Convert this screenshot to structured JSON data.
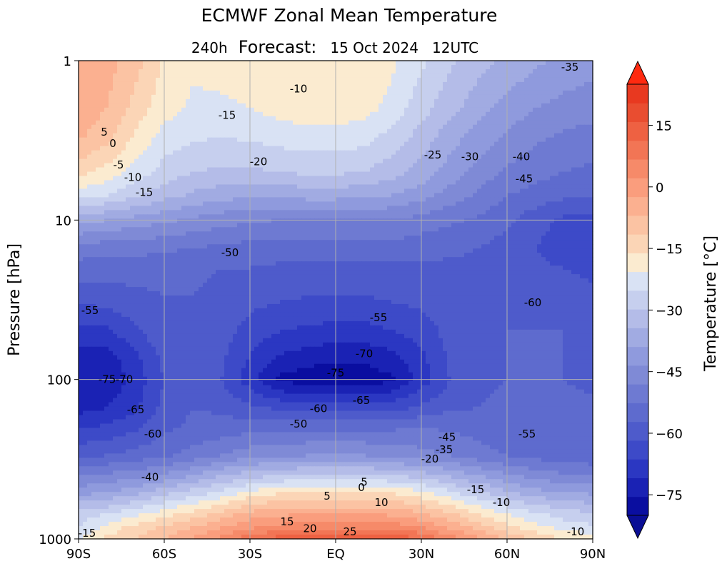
{
  "chart_data": {
    "type": "heatmap",
    "title": "ECMWF Zonal Mean Temperature",
    "subtitle": {
      "lead": "240h",
      "label": "Forecast:",
      "date": "15 Oct 2024",
      "time": "12UTC"
    },
    "xlabel": "",
    "ylabel": "Pressure [hPa]",
    "x_scale": "linear",
    "y_scale": "log",
    "y_inverted": true,
    "xlim": [
      -90,
      90
    ],
    "ylim": [
      1000,
      1
    ],
    "x_ticks": [
      {
        "value": -90,
        "label": "90S"
      },
      {
        "value": -60,
        "label": "60S"
      },
      {
        "value": -30,
        "label": "30S"
      },
      {
        "value": 0,
        "label": "EQ"
      },
      {
        "value": 30,
        "label": "30N"
      },
      {
        "value": 60,
        "label": "60N"
      },
      {
        "value": 90,
        "label": "90N"
      }
    ],
    "y_ticks": [
      {
        "value": 1,
        "label": "1"
      },
      {
        "value": 10,
        "label": "10"
      },
      {
        "value": 100,
        "label": "100"
      },
      {
        "value": 1000,
        "label": "1000"
      }
    ],
    "grid": true,
    "contour_interval": 5,
    "colorbar": {
      "label": "Temperature [°C]",
      "min": -80,
      "max": 25,
      "step": 5,
      "extend": "both",
      "ticks": [
        {
          "value": 15,
          "label": "15"
        },
        {
          "value": 0,
          "label": "0"
        },
        {
          "value": -15,
          "label": "−15"
        },
        {
          "value": -30,
          "label": "−30"
        },
        {
          "value": -45,
          "label": "−45"
        },
        {
          "value": -60,
          "label": "−60"
        },
        {
          "value": -75,
          "label": "−75"
        }
      ],
      "colors": [
        "#0a0ea0",
        "#1a22b4",
        "#2b37c2",
        "#3d4ac8",
        "#4e5bcb",
        "#5e6bce",
        "#6e7ad2",
        "#7f8ad6",
        "#8f9add",
        "#a1abe2",
        "#b4bce8",
        "#c6cfee",
        "#d9e2f4",
        "#fbebd0",
        "#fbd5b6",
        "#fbc3a3",
        "#fbb090",
        "#fa9d7d",
        "#f68a69",
        "#f27555",
        "#ee6142",
        "#e94d30",
        "#e83920"
      ],
      "over_color": "#ff2a10",
      "under_color": "#0a0e95"
    },
    "grid_data": {
      "lat": [
        -90,
        -80,
        -70,
        -60,
        -50,
        -40,
        -30,
        -20,
        -10,
        0,
        10,
        20,
        30,
        40,
        50,
        60,
        70,
        80,
        90
      ],
      "pressure_hPa": [
        1,
        2,
        3,
        5,
        7,
        10,
        15,
        20,
        30,
        50,
        70,
        100,
        150,
        200,
        300,
        400,
        500,
        700,
        850,
        1000
      ],
      "temperature_C": [
        [
          2,
          2,
          -3,
          -11,
          -14,
          -13,
          -12,
          -11,
          -10,
          -10,
          -10,
          -14,
          -19,
          -24,
          -28,
          -31,
          -34,
          -36,
          -38
        ],
        [
          3,
          0,
          -7,
          -13,
          -16,
          -16,
          -15,
          -13,
          -12,
          -12,
          -13,
          -17,
          -23,
          -28,
          -33,
          -37,
          -40,
          -42,
          -43
        ],
        [
          1,
          -3,
          -11,
          -17,
          -19,
          -20,
          -19,
          -18,
          -17,
          -17,
          -18,
          -22,
          -27,
          -33,
          -37,
          -41,
          -44,
          -46,
          -47
        ],
        [
          -8,
          -12,
          -17,
          -22,
          -25,
          -26,
          -26,
          -25,
          -24,
          -24,
          -25,
          -28,
          -32,
          -37,
          -42,
          -46,
          -48,
          -50,
          -51
        ],
        [
          -18,
          -20,
          -24,
          -28,
          -31,
          -33,
          -34,
          -34,
          -33,
          -33,
          -34,
          -35,
          -38,
          -42,
          -46,
          -50,
          -52,
          -54,
          -55
        ],
        [
          -33,
          -35,
          -37,
          -39,
          -41,
          -43,
          -44,
          -45,
          -45,
          -45,
          -45,
          -45,
          -47,
          -49,
          -51,
          -54,
          -58,
          -61,
          -62
        ],
        [
          -47,
          -48,
          -48,
          -49,
          -50,
          -51,
          -52,
          -52,
          -52,
          -52,
          -52,
          -52,
          -53,
          -54,
          -55,
          -57,
          -60,
          -63,
          -64
        ],
        [
          -52,
          -53,
          -53,
          -53,
          -54,
          -55,
          -55,
          -56,
          -56,
          -56,
          -56,
          -56,
          -56,
          -56,
          -56,
          -57,
          -59,
          -60,
          -62
        ],
        [
          -58,
          -57,
          -56,
          -55,
          -55,
          -56,
          -58,
          -59,
          -60,
          -60,
          -60,
          -59,
          -58,
          -57,
          -56,
          -56,
          -57,
          -57,
          -58
        ],
        [
          -67,
          -66,
          -61,
          -56,
          -56,
          -58,
          -62,
          -65,
          -66,
          -67,
          -67,
          -65,
          -63,
          -58,
          -56,
          -55,
          -55,
          -55,
          -56
        ],
        [
          -72,
          -72,
          -66,
          -58,
          -57,
          -59,
          -65,
          -70,
          -72,
          -73,
          -73,
          -71,
          -66,
          -59,
          -56,
          -55,
          -55,
          -55,
          -56
        ],
        [
          -75,
          -74,
          -68,
          -60,
          -57,
          -60,
          -68,
          -76,
          -78,
          -79,
          -78,
          -76,
          -68,
          -60,
          -56,
          -55,
          -55,
          -55,
          -56
        ],
        [
          -72,
          -70,
          -66,
          -58,
          -55,
          -56,
          -59,
          -61,
          -63,
          -63,
          -63,
          -62,
          -59,
          -56,
          -55,
          -54,
          -54,
          -54,
          -54
        ],
        [
          -66,
          -64,
          -61,
          -56,
          -54,
          -53,
          -52,
          -51,
          -51,
          -51,
          -51,
          -51,
          -50,
          -51,
          -52,
          -53,
          -54,
          -55,
          -55
        ],
        [
          -56,
          -55,
          -53,
          -51,
          -48,
          -45,
          -42,
          -41,
          -40,
          -40,
          -40,
          -41,
          -43,
          -45,
          -48,
          -50,
          -52,
          -53,
          -54
        ],
        [
          -45,
          -44,
          -42,
          -39,
          -35,
          -30,
          -27,
          -25,
          -24,
          -24,
          -24,
          -25,
          -27,
          -31,
          -35,
          -39,
          -42,
          -44,
          -45
        ],
        [
          -38,
          -36,
          -33,
          -28,
          -24,
          -20,
          -15,
          -12,
          -11,
          -11,
          -11,
          -12,
          -15,
          -20,
          -25,
          -30,
          -34,
          -36,
          -37
        ],
        [
          -22,
          -20,
          -16,
          -12,
          -8,
          -3,
          2,
          4,
          5,
          5,
          5,
          4,
          1,
          -4,
          -10,
          -15,
          -19,
          -22,
          -24
        ],
        [
          -20,
          -13,
          -8,
          -4,
          0,
          5,
          9,
          12,
          13,
          14,
          14,
          13,
          10,
          4,
          -2,
          -8,
          -13,
          -17,
          -19
        ],
        [
          -15,
          -9,
          -5,
          0,
          6,
          12,
          18,
          22,
          24,
          25,
          25,
          24,
          20,
          13,
          6,
          -1,
          -6,
          -10,
          -12
        ]
      ]
    },
    "contour_labels": [
      {
        "text": "5",
        "lat": -81,
        "p": 2.8
      },
      {
        "text": "0",
        "lat": -78,
        "p": 3.3
      },
      {
        "text": "-5",
        "lat": -76,
        "p": 4.5
      },
      {
        "text": "-10",
        "lat": -71,
        "p": 5.4
      },
      {
        "text": "-15",
        "lat": -67,
        "p": 6.7
      },
      {
        "text": "-15",
        "lat": -38,
        "p": 2.2
      },
      {
        "text": "-10",
        "lat": -13,
        "p": 1.5
      },
      {
        "text": "-20",
        "lat": -27,
        "p": 4.3
      },
      {
        "text": "-25",
        "lat": 34,
        "p": 3.9
      },
      {
        "text": "-30",
        "lat": 47,
        "p": 4
      },
      {
        "text": "-35",
        "lat": 82,
        "p": 1.1
      },
      {
        "text": "-40",
        "lat": 65,
        "p": 4
      },
      {
        "text": "-45",
        "lat": 66,
        "p": 5.5
      },
      {
        "text": "-50",
        "lat": -37,
        "p": 16
      },
      {
        "text": "-55",
        "lat": -86,
        "p": 37
      },
      {
        "text": "-55",
        "lat": 15,
        "p": 41
      },
      {
        "text": "-60",
        "lat": 69,
        "p": 33
      },
      {
        "text": "-70",
        "lat": 10,
        "p": 69
      },
      {
        "text": "-75",
        "lat": 0,
        "p": 91
      },
      {
        "text": "-75",
        "lat": -80,
        "p": 100
      },
      {
        "text": "-70",
        "lat": -74,
        "p": 100
      },
      {
        "text": "-65",
        "lat": -70,
        "p": 155
      },
      {
        "text": "-60",
        "lat": -64,
        "p": 220
      },
      {
        "text": "-60",
        "lat": -6,
        "p": 152
      },
      {
        "text": "-65",
        "lat": 9,
        "p": 135
      },
      {
        "text": "-50",
        "lat": -13,
        "p": 190
      },
      {
        "text": "-45",
        "lat": 39,
        "p": 230
      },
      {
        "text": "-35",
        "lat": 38,
        "p": 275
      },
      {
        "text": "-20",
        "lat": 33,
        "p": 315
      },
      {
        "text": "-55",
        "lat": 67,
        "p": 220
      },
      {
        "text": "-40",
        "lat": -65,
        "p": 410
      },
      {
        "text": "5",
        "lat": 10,
        "p": 440
      },
      {
        "text": "0",
        "lat": 9,
        "p": 475
      },
      {
        "text": "5",
        "lat": -3,
        "p": 540
      },
      {
        "text": "10",
        "lat": 16,
        "p": 590
      },
      {
        "text": "-15",
        "lat": 49,
        "p": 490
      },
      {
        "text": "-10",
        "lat": 58,
        "p": 590
      },
      {
        "text": "15",
        "lat": -17,
        "p": 780
      },
      {
        "text": "20",
        "lat": -9,
        "p": 860
      },
      {
        "text": "25",
        "lat": 5,
        "p": 900
      },
      {
        "text": "-15",
        "lat": -87,
        "p": 920
      },
      {
        "text": "-10",
        "lat": 84,
        "p": 900
      }
    ]
  }
}
